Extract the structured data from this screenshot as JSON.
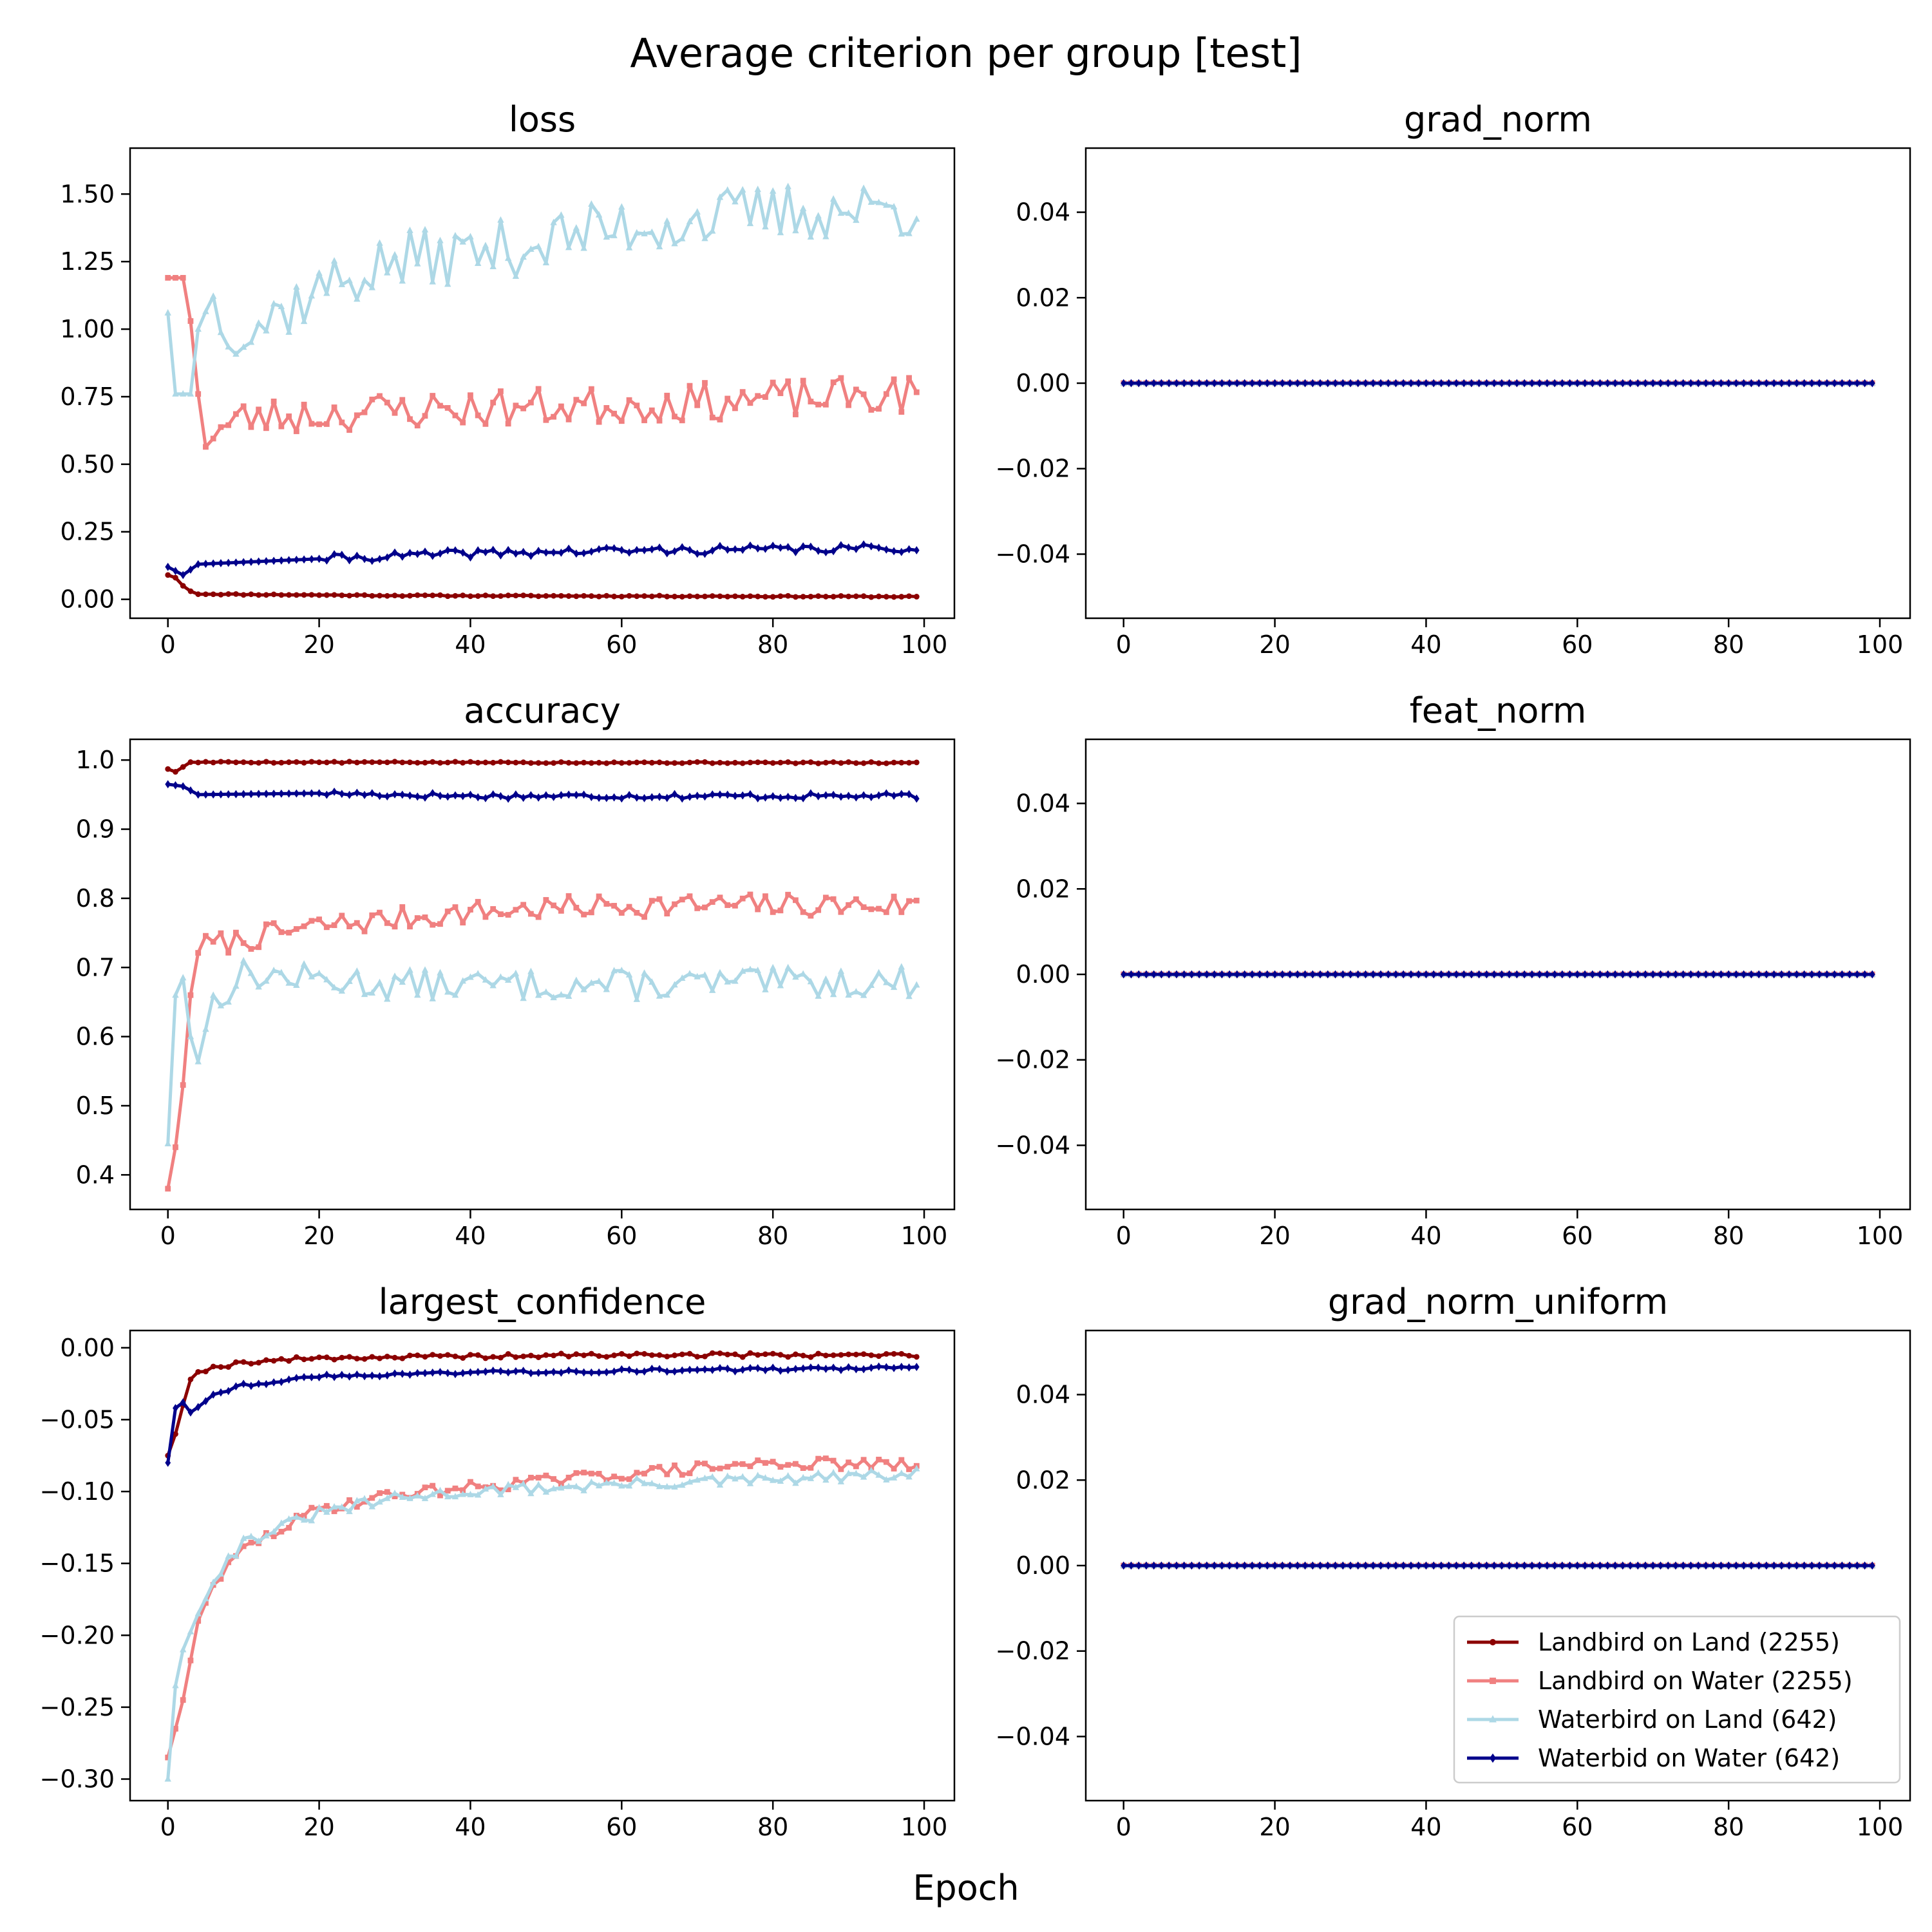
{
  "figure": {
    "suptitle": "Average criterion per group [test]",
    "xlabel": "Epoch"
  },
  "legend": {
    "placement": "lower-right of grad_norm_uniform panel",
    "entries": [
      {
        "label": "Landbird on Land (2255)",
        "color": "#8B0000",
        "marker": "circle"
      },
      {
        "label": "Landbird on Water (2255)",
        "color": "#F08080",
        "marker": "square"
      },
      {
        "label": "Waterbird on Land (642)",
        "color": "#ADD8E6",
        "marker": "triangle"
      },
      {
        "label": "Waterbid on Water (642)",
        "color": "#00008B",
        "marker": "diamond"
      }
    ]
  },
  "chart_data": [
    {
      "type": "line",
      "title": "loss",
      "xlim": [
        -5,
        104
      ],
      "ylim": [
        -0.07,
        1.67
      ],
      "xticks": [
        0,
        20,
        40,
        60,
        80,
        100
      ],
      "xtick_labels": [
        "0",
        "20",
        "40",
        "60",
        "80",
        "100"
      ],
      "yticks": [
        0,
        0.25,
        0.5,
        0.75,
        1.0,
        1.25,
        1.5
      ],
      "ytick_labels": [
        "0.00",
        "0.25",
        "0.50",
        "0.75",
        "1.00",
        "1.25",
        "1.50"
      ],
      "series": [
        {
          "name": "Landbird on Land (2255)",
          "color": "#8B0000",
          "marker": "circle",
          "start": 0.09,
          "anchors": [
            [
              0,
              0.09
            ],
            [
              1,
              0.08
            ],
            [
              2,
              0.05
            ],
            [
              3,
              0.03
            ],
            [
              4,
              0.02
            ],
            [
              10,
              0.018
            ],
            [
              30,
              0.014
            ],
            [
              60,
              0.012
            ],
            [
              99,
              0.01
            ]
          ],
          "noise": 0.002,
          "seed": 11
        },
        {
          "name": "Landbird on Water (2255)",
          "color": "#F08080",
          "marker": "square",
          "anchors": [
            [
              0,
              1.19
            ],
            [
              2,
              1.19
            ],
            [
              3,
              1.03
            ],
            [
              4,
              0.76
            ],
            [
              5,
              0.6
            ],
            [
              10,
              0.67
            ],
            [
              30,
              0.7
            ],
            [
              60,
              0.72
            ],
            [
              99,
              0.76
            ]
          ],
          "noise": 0.07,
          "seed": 23
        },
        {
          "name": "Waterbird on Land (642)",
          "color": "#ADD8E6",
          "marker": "triangle",
          "anchors": [
            [
              0,
              1.06
            ],
            [
              1,
              0.76
            ],
            [
              3,
              0.76
            ],
            [
              4,
              1.0
            ],
            [
              5,
              1.12
            ],
            [
              10,
              0.98
            ],
            [
              20,
              1.15
            ],
            [
              30,
              1.25
            ],
            [
              45,
              1.3
            ],
            [
              60,
              1.38
            ],
            [
              80,
              1.43
            ],
            [
              99,
              1.45
            ]
          ],
          "noise": 0.11,
          "seed": 37
        },
        {
          "name": "Waterbid on Water (642)",
          "color": "#00008B",
          "marker": "diamond",
          "anchors": [
            [
              0,
              0.12
            ],
            [
              2,
              0.09
            ],
            [
              4,
              0.13
            ],
            [
              20,
              0.15
            ],
            [
              40,
              0.17
            ],
            [
              60,
              0.18
            ],
            [
              99,
              0.19
            ]
          ],
          "noise": 0.015,
          "seed": 41
        }
      ]
    },
    {
      "type": "line",
      "title": "grad_norm",
      "xlim": [
        -5,
        104
      ],
      "ylim": [
        -0.055,
        0.055
      ],
      "xticks": [
        0,
        20,
        40,
        60,
        80,
        100
      ],
      "xtick_labels": [
        "0",
        "20",
        "40",
        "60",
        "80",
        "100"
      ],
      "yticks": [
        -0.04,
        -0.02,
        0.0,
        0.02,
        0.04
      ],
      "ytick_labels": [
        "−0.04",
        "−0.02",
        "0.00",
        "0.02",
        "0.04"
      ],
      "series": [
        {
          "name": "Landbird on Land (2255)",
          "color": "#8B0000",
          "marker": "circle",
          "anchors": [
            [
              0,
              0
            ],
            [
              99,
              0
            ]
          ],
          "noise": 0,
          "seed": 1
        },
        {
          "name": "Landbird on Water (2255)",
          "color": "#F08080",
          "marker": "square",
          "anchors": [
            [
              0,
              0
            ],
            [
              99,
              0
            ]
          ],
          "noise": 0,
          "seed": 2
        },
        {
          "name": "Waterbird on Land (642)",
          "color": "#ADD8E6",
          "marker": "triangle",
          "anchors": [
            [
              0,
              0
            ],
            [
              99,
              0
            ]
          ],
          "noise": 0,
          "seed": 3
        },
        {
          "name": "Waterbid on Water (642)",
          "color": "#00008B",
          "marker": "diamond",
          "anchors": [
            [
              0,
              0
            ],
            [
              99,
              0
            ]
          ],
          "noise": 0,
          "seed": 4
        }
      ]
    },
    {
      "type": "line",
      "title": "accuracy",
      "xlim": [
        -5,
        104
      ],
      "ylim": [
        0.35,
        1.03
      ],
      "xticks": [
        0,
        20,
        40,
        60,
        80,
        100
      ],
      "xtick_labels": [
        "0",
        "20",
        "40",
        "60",
        "80",
        "100"
      ],
      "yticks": [
        0.4,
        0.5,
        0.6,
        0.7,
        0.8,
        0.9,
        1.0
      ],
      "ytick_labels": [
        "0.4",
        "0.5",
        "0.6",
        "0.7",
        "0.8",
        "0.9",
        "1.0"
      ],
      "series": [
        {
          "name": "Landbird on Land (2255)",
          "color": "#8B0000",
          "marker": "circle",
          "anchors": [
            [
              0,
              0.987
            ],
            [
              1,
              0.983
            ],
            [
              2,
              0.99
            ],
            [
              3,
              0.997
            ],
            [
              99,
              0.996
            ]
          ],
          "noise": 0.001,
          "seed": 5
        },
        {
          "name": "Landbird on Water (2255)",
          "color": "#F08080",
          "marker": "square",
          "anchors": [
            [
              0,
              0.38
            ],
            [
              1,
              0.44
            ],
            [
              2,
              0.53
            ],
            [
              3,
              0.66
            ],
            [
              4,
              0.73
            ],
            [
              10,
              0.74
            ],
            [
              20,
              0.76
            ],
            [
              40,
              0.78
            ],
            [
              60,
              0.79
            ],
            [
              99,
              0.79
            ]
          ],
          "noise": 0.017,
          "seed": 7
        },
        {
          "name": "Waterbird on Land (642)",
          "color": "#ADD8E6",
          "marker": "triangle",
          "anchors": [
            [
              0,
              0.445
            ],
            [
              1,
              0.66
            ],
            [
              2,
              0.685
            ],
            [
              3,
              0.6
            ],
            [
              4,
              0.575
            ],
            [
              6,
              0.65
            ],
            [
              10,
              0.69
            ],
            [
              30,
              0.675
            ],
            [
              60,
              0.675
            ],
            [
              99,
              0.68
            ]
          ],
          "noise": 0.022,
          "seed": 13
        },
        {
          "name": "Waterbid on Water (642)",
          "color": "#00008B",
          "marker": "diamond",
          "anchors": [
            [
              0,
              0.965
            ],
            [
              2,
              0.962
            ],
            [
              4,
              0.95
            ],
            [
              20,
              0.952
            ],
            [
              40,
              0.948
            ],
            [
              60,
              0.948
            ],
            [
              99,
              0.948
            ]
          ],
          "noise": 0.004,
          "seed": 17
        }
      ]
    },
    {
      "type": "line",
      "title": "feat_norm",
      "xlim": [
        -5,
        104
      ],
      "ylim": [
        -0.055,
        0.055
      ],
      "xticks": [
        0,
        20,
        40,
        60,
        80,
        100
      ],
      "xtick_labels": [
        "0",
        "20",
        "40",
        "60",
        "80",
        "100"
      ],
      "yticks": [
        -0.04,
        -0.02,
        0.0,
        0.02,
        0.04
      ],
      "ytick_labels": [
        "−0.04",
        "−0.02",
        "0.00",
        "0.02",
        "0.04"
      ],
      "series": [
        {
          "name": "Landbird on Land (2255)",
          "color": "#8B0000",
          "marker": "circle",
          "anchors": [
            [
              0,
              0
            ],
            [
              99,
              0
            ]
          ],
          "noise": 0,
          "seed": 1
        },
        {
          "name": "Landbird on Water (2255)",
          "color": "#F08080",
          "marker": "square",
          "anchors": [
            [
              0,
              0
            ],
            [
              99,
              0
            ]
          ],
          "noise": 0,
          "seed": 2
        },
        {
          "name": "Waterbird on Land (642)",
          "color": "#ADD8E6",
          "marker": "triangle",
          "anchors": [
            [
              0,
              0
            ],
            [
              99,
              0
            ]
          ],
          "noise": 0,
          "seed": 3
        },
        {
          "name": "Waterbid on Water (642)",
          "color": "#00008B",
          "marker": "diamond",
          "anchors": [
            [
              0,
              0
            ],
            [
              99,
              0
            ]
          ],
          "noise": 0,
          "seed": 4
        }
      ]
    },
    {
      "type": "line",
      "title": "largest_confidence",
      "xlim": [
        -5,
        104
      ],
      "ylim": [
        -0.315,
        0.012
      ],
      "xticks": [
        0,
        20,
        40,
        60,
        80,
        100
      ],
      "xtick_labels": [
        "0",
        "20",
        "40",
        "60",
        "80",
        "100"
      ],
      "yticks": [
        -0.3,
        -0.25,
        -0.2,
        -0.15,
        -0.1,
        -0.05,
        0.0
      ],
      "ytick_labels": [
        "−0.30",
        "−0.25",
        "−0.20",
        "−0.15",
        "−0.10",
        "−0.05",
        "0.00"
      ],
      "series": [
        {
          "name": "Landbird on Land (2255)",
          "color": "#8B0000",
          "marker": "circle",
          "anchors": [
            [
              0,
              -0.075
            ],
            [
              1,
              -0.06
            ],
            [
              2,
              -0.04
            ],
            [
              3,
              -0.022
            ],
            [
              4,
              -0.016
            ],
            [
              10,
              -0.01
            ],
            [
              20,
              -0.007
            ],
            [
              40,
              -0.006
            ],
            [
              60,
              -0.005
            ],
            [
              99,
              -0.005
            ]
          ],
          "noise": 0.0015,
          "seed": 19
        },
        {
          "name": "Landbird on Water (2255)",
          "color": "#F08080",
          "marker": "square",
          "anchors": [
            [
              0,
              -0.285
            ],
            [
              2,
              -0.245
            ],
            [
              4,
              -0.19
            ],
            [
              6,
              -0.165
            ],
            [
              10,
              -0.14
            ],
            [
              20,
              -0.112
            ],
            [
              30,
              -0.102
            ],
            [
              40,
              -0.097
            ],
            [
              60,
              -0.088
            ],
            [
              80,
              -0.08
            ],
            [
              99,
              -0.082
            ]
          ],
          "noise": 0.004,
          "seed": 29
        },
        {
          "name": "Waterbird on Land (642)",
          "color": "#ADD8E6",
          "marker": "triangle",
          "anchors": [
            [
              0,
              -0.3
            ],
            [
              1,
              -0.235
            ],
            [
              2,
              -0.21
            ],
            [
              4,
              -0.185
            ],
            [
              6,
              -0.16
            ],
            [
              10,
              -0.135
            ],
            [
              20,
              -0.115
            ],
            [
              30,
              -0.105
            ],
            [
              40,
              -0.1
            ],
            [
              60,
              -0.095
            ],
            [
              80,
              -0.092
            ],
            [
              99,
              -0.088
            ]
          ],
          "noise": 0.004,
          "seed": 31
        },
        {
          "name": "Waterbid on Water (642)",
          "color": "#00008B",
          "marker": "diamond",
          "anchors": [
            [
              0,
              -0.08
            ],
            [
              1,
              -0.042
            ],
            [
              2,
              -0.038
            ],
            [
              3,
              -0.045
            ],
            [
              6,
              -0.032
            ],
            [
              10,
              -0.026
            ],
            [
              20,
              -0.02
            ],
            [
              40,
              -0.017
            ],
            [
              60,
              -0.016
            ],
            [
              99,
              -0.014
            ]
          ],
          "noise": 0.0012,
          "seed": 43
        }
      ]
    },
    {
      "type": "line",
      "title": "grad_norm_uniform",
      "xlim": [
        -5,
        104
      ],
      "ylim": [
        -0.055,
        0.055
      ],
      "xticks": [
        0,
        20,
        40,
        60,
        80,
        100
      ],
      "xtick_labels": [
        "0",
        "20",
        "40",
        "60",
        "80",
        "100"
      ],
      "yticks": [
        -0.04,
        -0.02,
        0.0,
        0.02,
        0.04
      ],
      "ytick_labels": [
        "−0.04",
        "−0.02",
        "0.00",
        "0.02",
        "0.04"
      ],
      "series": [
        {
          "name": "Landbird on Land (2255)",
          "color": "#8B0000",
          "marker": "circle",
          "anchors": [
            [
              0,
              0
            ],
            [
              99,
              0
            ]
          ],
          "noise": 0,
          "seed": 1
        },
        {
          "name": "Landbird on Water (2255)",
          "color": "#F08080",
          "marker": "square",
          "anchors": [
            [
              0,
              0
            ],
            [
              99,
              0
            ]
          ],
          "noise": 0,
          "seed": 2
        },
        {
          "name": "Waterbird on Land (642)",
          "color": "#ADD8E6",
          "marker": "triangle",
          "anchors": [
            [
              0,
              0
            ],
            [
              99,
              0
            ]
          ],
          "noise": 0,
          "seed": 3
        },
        {
          "name": "Waterbid on Water (642)",
          "color": "#00008B",
          "marker": "diamond",
          "anchors": [
            [
              0,
              0
            ],
            [
              99,
              0
            ]
          ],
          "noise": 0,
          "seed": 4
        }
      ]
    }
  ]
}
